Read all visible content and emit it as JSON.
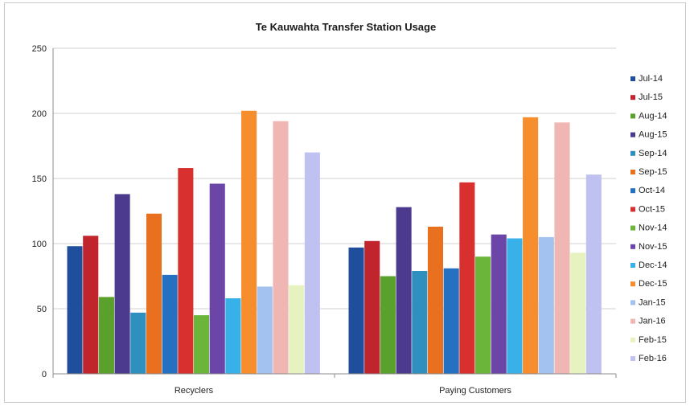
{
  "chart_data": {
    "type": "bar",
    "title": "Te Kauwahta Transfer Station Usage",
    "xlabel": "",
    "ylabel": "",
    "categories": [
      "Recyclers",
      "Paying Customers"
    ],
    "ylim": [
      0,
      250
    ],
    "yticks": [
      0,
      50,
      100,
      150,
      200,
      250
    ],
    "grid": true,
    "legend_position": "right",
    "series": [
      {
        "name": "Jul-14",
        "color": "#1f4e9c",
        "values": [
          98,
          97
        ]
      },
      {
        "name": "Jul-15",
        "color": "#c0242c",
        "values": [
          106,
          102
        ]
      },
      {
        "name": "Aug-14",
        "color": "#5aa02c",
        "values": [
          59,
          75
        ]
      },
      {
        "name": "Aug-15",
        "color": "#4b3a8e",
        "values": [
          138,
          128
        ]
      },
      {
        "name": "Sep-14",
        "color": "#2f8fbf",
        "values": [
          47,
          79
        ]
      },
      {
        "name": "Sep-15",
        "color": "#e8701f",
        "values": [
          123,
          113
        ]
      },
      {
        "name": "Oct-14",
        "color": "#2570c0",
        "values": [
          76,
          81
        ]
      },
      {
        "name": "Oct-15",
        "color": "#d7302e",
        "values": [
          158,
          147
        ]
      },
      {
        "name": "Nov-14",
        "color": "#6ab53a",
        "values": [
          45,
          90
        ]
      },
      {
        "name": "Nov-15",
        "color": "#6b45a8",
        "values": [
          146,
          107
        ]
      },
      {
        "name": "Dec-14",
        "color": "#38b0e8",
        "values": [
          58,
          104
        ]
      },
      {
        "name": "Dec-15",
        "color": "#f68e2e",
        "values": [
          202,
          197
        ]
      },
      {
        "name": "Jan-15",
        "color": "#a4c2f0",
        "values": [
          67,
          105
        ]
      },
      {
        "name": "Jan-16",
        "color": "#efb6b4",
        "values": [
          194,
          193
        ]
      },
      {
        "name": "Feb-15",
        "color": "#e6f3c0",
        "values": [
          68,
          93
        ]
      },
      {
        "name": "Feb-16",
        "color": "#bfc2f0",
        "values": [
          170,
          153
        ]
      }
    ]
  }
}
